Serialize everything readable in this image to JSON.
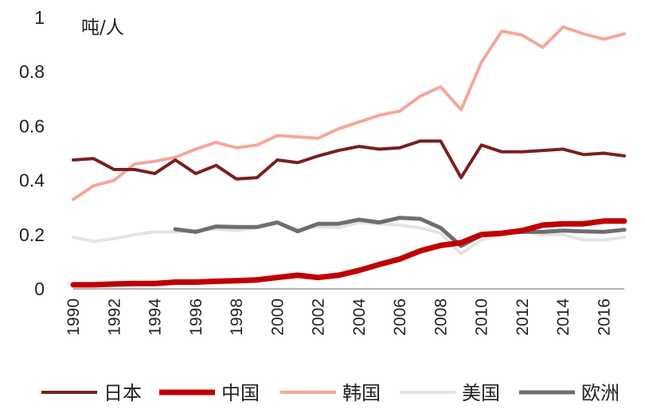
{
  "chart_data": {
    "type": "line",
    "ylabel": "吨/人",
    "ylim": [
      0,
      1
    ],
    "yticks": [
      {
        "value": 0,
        "label": "0"
      },
      {
        "value": 0.2,
        "label": "0.2"
      },
      {
        "value": 0.4,
        "label": "0.4"
      },
      {
        "value": 0.6,
        "label": "0.6"
      },
      {
        "value": 0.8,
        "label": "0.8"
      },
      {
        "value": 1,
        "label": "1"
      }
    ],
    "xlim": [
      1990,
      2017
    ],
    "xticks": [
      "1990",
      "1992",
      "1994",
      "1996",
      "1998",
      "2000",
      "2002",
      "2004",
      "2006",
      "2008",
      "2010",
      "2012",
      "2014",
      "2016"
    ],
    "grid": false,
    "legend_position": "bottom",
    "series": [
      {
        "name": "日本",
        "color": "#7a1f1f",
        "width": 4,
        "x": [
          1990,
          1991,
          1992,
          1993,
          1994,
          1995,
          1996,
          1997,
          1998,
          1999,
          2000,
          2001,
          2002,
          2003,
          2004,
          2005,
          2006,
          2007,
          2008,
          2009,
          2010,
          2011,
          2012,
          2013,
          2014,
          2015,
          2016,
          2017
        ],
        "y": [
          0.475,
          0.48,
          0.44,
          0.44,
          0.425,
          0.475,
          0.425,
          0.455,
          0.405,
          0.41,
          0.475,
          0.465,
          0.49,
          0.51,
          0.525,
          0.515,
          0.52,
          0.545,
          0.545,
          0.41,
          0.53,
          0.505,
          0.505,
          0.51,
          0.515,
          0.495,
          0.5,
          0.49
        ]
      },
      {
        "name": "中国",
        "color": "#c00000",
        "width": 7,
        "x": [
          1990,
          1991,
          1992,
          1993,
          1994,
          1995,
          1996,
          1997,
          1998,
          1999,
          2000,
          2001,
          2002,
          2003,
          2004,
          2005,
          2006,
          2007,
          2008,
          2009,
          2010,
          2011,
          2012,
          2013,
          2014,
          2015,
          2016,
          2017
        ],
        "y": [
          0.015,
          0.015,
          0.018,
          0.02,
          0.02,
          0.025,
          0.025,
          0.028,
          0.03,
          0.033,
          0.042,
          0.05,
          0.042,
          0.05,
          0.068,
          0.09,
          0.11,
          0.14,
          0.16,
          0.17,
          0.2,
          0.205,
          0.215,
          0.235,
          0.24,
          0.24,
          0.25,
          0.25
        ]
      },
      {
        "name": "韩国",
        "color": "#f6a69c",
        "width": 4,
        "x": [
          1990,
          1991,
          1992,
          1993,
          1994,
          1995,
          1996,
          1997,
          1998,
          1999,
          2000,
          2001,
          2002,
          2003,
          2004,
          2005,
          2006,
          2007,
          2008,
          2009,
          2010,
          2011,
          2012,
          2013,
          2014,
          2015,
          2016,
          2017
        ],
        "y": [
          0.33,
          0.38,
          0.4,
          0.46,
          0.47,
          0.485,
          0.515,
          0.54,
          0.52,
          0.53,
          0.565,
          0.56,
          0.555,
          0.59,
          0.615,
          0.64,
          0.655,
          0.71,
          0.745,
          0.66,
          0.835,
          0.95,
          0.935,
          0.89,
          0.965,
          0.94,
          0.92,
          0.94
        ]
      },
      {
        "name": "美国",
        "color": "#e3e3e3",
        "width": 4,
        "x": [
          1990,
          1991,
          1992,
          1993,
          1994,
          1995,
          1996,
          1997,
          1998,
          1999,
          2000,
          2001,
          2002,
          2003,
          2004,
          2005,
          2006,
          2007,
          2008,
          2009,
          2010,
          2011,
          2012,
          2013,
          2014,
          2015,
          2016,
          2017
        ],
        "y": [
          0.19,
          0.175,
          0.185,
          0.2,
          0.21,
          0.21,
          0.215,
          0.22,
          0.215,
          0.225,
          0.245,
          0.22,
          0.23,
          0.225,
          0.245,
          0.24,
          0.235,
          0.225,
          0.205,
          0.13,
          0.18,
          0.2,
          0.21,
          0.2,
          0.2,
          0.18,
          0.18,
          0.19
        ]
      },
      {
        "name": "欧洲",
        "color": "#6e6e6e",
        "width": 5,
        "x": [
          1995,
          1996,
          1997,
          1998,
          1999,
          2000,
          2001,
          2002,
          2003,
          2004,
          2005,
          2006,
          2007,
          2008,
          2009,
          2010,
          2011,
          2012,
          2013,
          2014,
          2015,
          2016,
          2017
        ],
        "y": [
          0.22,
          0.21,
          0.23,
          0.228,
          0.228,
          0.245,
          0.212,
          0.24,
          0.24,
          0.255,
          0.245,
          0.262,
          0.258,
          0.225,
          0.158,
          0.198,
          0.205,
          0.21,
          0.21,
          0.215,
          0.212,
          0.21,
          0.218
        ]
      }
    ]
  }
}
